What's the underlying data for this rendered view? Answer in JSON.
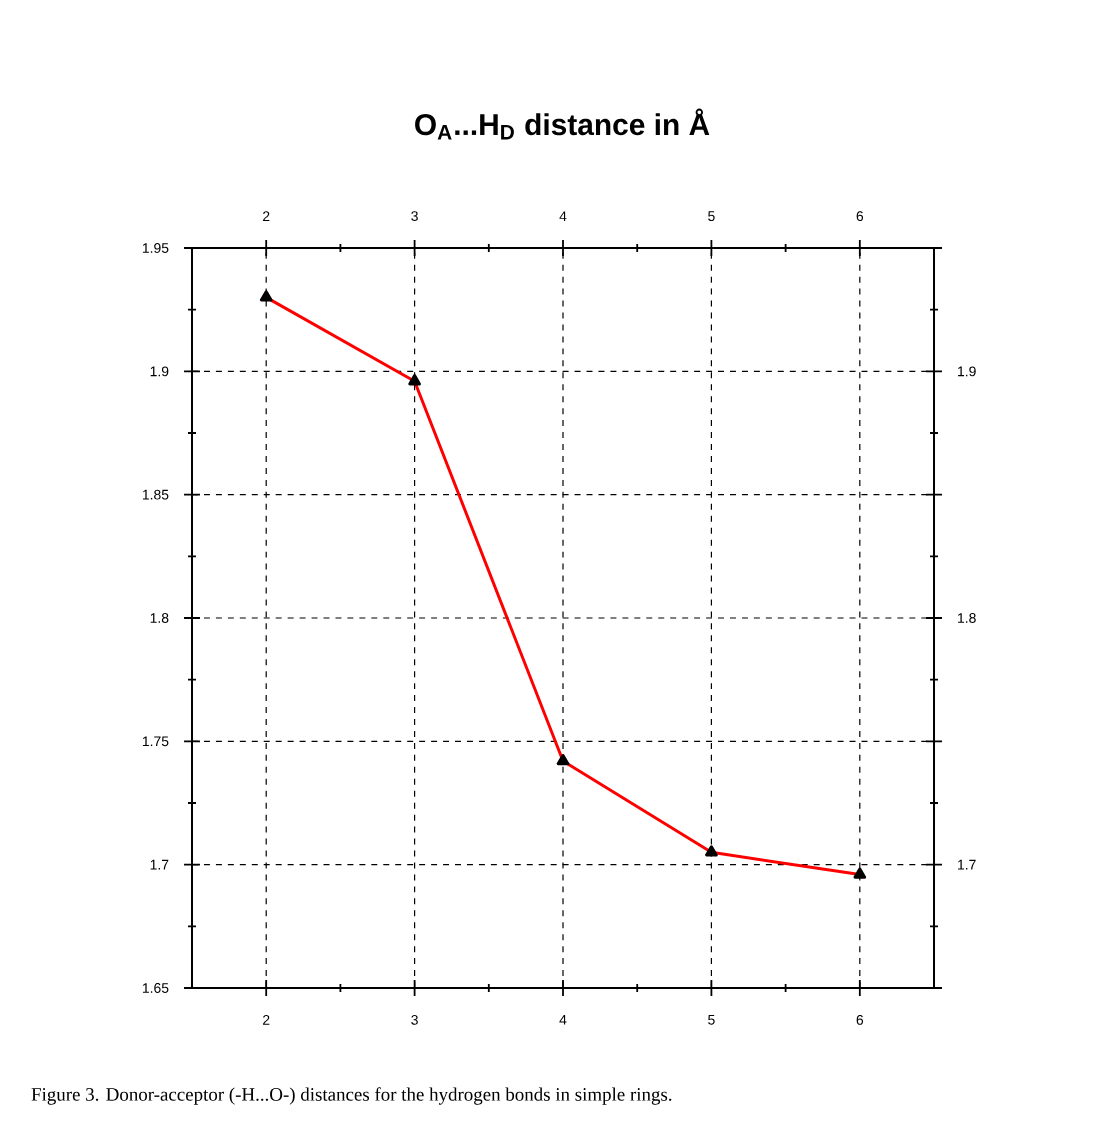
{
  "chart_data": {
    "type": "line",
    "title": "O$_{A}$...H$_{D}$ distance in Å",
    "x": [
      2,
      3,
      4,
      5,
      6
    ],
    "series": [
      {
        "color": "#ff0000",
        "values": [
          1.93,
          1.896,
          1.742,
          1.705,
          1.696
        ]
      }
    ],
    "xlim": [
      1.5,
      6.5
    ],
    "xticks": [
      2,
      3,
      4,
      5,
      6
    ],
    "x2lim": [
      1.5,
      6.5
    ],
    "x2ticks": [
      2,
      3,
      4,
      5,
      6
    ],
    "ylim": [
      1.65,
      1.95
    ],
    "yticks": [
      1.65,
      1.7,
      1.75,
      1.8,
      1.85,
      1.9,
      1.95
    ],
    "y2lim": [
      1.65,
      1.95
    ],
    "y2ticks": [
      {
        "value": 1.65,
        "label": null
      },
      1.7,
      {
        "value": 1.75,
        "label": null
      },
      1.8,
      {
        "value": 1.85,
        "label": null
      },
      1.9,
      {
        "value": 1.95,
        "label": null
      }
    ],
    "grid": true,
    "marker": "triangle",
    "line_style": "solid",
    "annotations": [
      "Figure 3.  Donor-acceptor (-H...O-) distances for the hydrogen bonds in simple rings."
    ]
  }
}
